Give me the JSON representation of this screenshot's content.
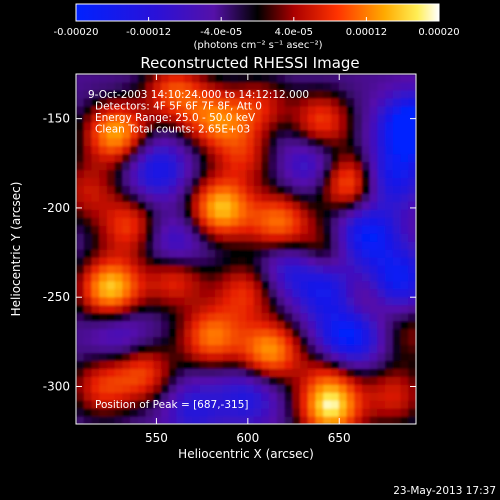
{
  "colorbar": {
    "tick_labels": [
      "-0.00020",
      "-0.00012",
      "-4.0e-05",
      "4.0e-05",
      "0.00012",
      "0.00020"
    ],
    "tick_values": [
      -0.0002,
      -0.00012,
      -4e-05,
      4e-05,
      0.00012,
      0.0002
    ],
    "range": [
      -0.0002,
      0.0002
    ],
    "unit_label": "(photons cm⁻² s⁻¹ asec⁻²)"
  },
  "chart_data": {
    "type": "heatmap",
    "title": "Reconstructed RHESSI Image",
    "xlabel": "Heliocentric X (arcsec)",
    "ylabel": "Heliocentric Y (arcsec)",
    "xlim": [
      506,
      692
    ],
    "ylim": [
      -321,
      -125
    ],
    "x_ticks": [
      550,
      600,
      650
    ],
    "y_ticks": [
      -150,
      -200,
      -250,
      -300
    ],
    "annotations": [
      "9-Oct-2003 14:10:24.000 to 14:12:12.000",
      "Detectors: 4F 5F 6F 7F 8F, Att 0",
      "Energy Range: 25.0 - 50.0 keV",
      "Clean    Total counts: 2.65E+03"
    ],
    "peak_label": "Position of Peak = [687,-315]",
    "peak": [
      687,
      -315
    ],
    "blobs": [
      {
        "x": 560,
        "y": -135,
        "v": 0.6
      },
      {
        "x": 528,
        "y": -158,
        "v": 0.85
      },
      {
        "x": 582,
        "y": -150,
        "v": 0.65
      },
      {
        "x": 608,
        "y": -146,
        "v": 0.7
      },
      {
        "x": 640,
        "y": -152,
        "v": 0.6
      },
      {
        "x": 655,
        "y": -185,
        "v": 0.75
      },
      {
        "x": 598,
        "y": -170,
        "v": 0.45
      },
      {
        "x": 512,
        "y": -190,
        "v": 0.4
      },
      {
        "x": 535,
        "y": -210,
        "v": 0.55
      },
      {
        "x": 585,
        "y": -200,
        "v": 0.9
      },
      {
        "x": 617,
        "y": -208,
        "v": 0.7
      },
      {
        "x": 640,
        "y": -225,
        "v": 0.45
      },
      {
        "x": 525,
        "y": -245,
        "v": 0.95
      },
      {
        "x": 560,
        "y": -238,
        "v": 0.6
      },
      {
        "x": 598,
        "y": -247,
        "v": 0.5
      },
      {
        "x": 660,
        "y": -250,
        "v": 0.35
      },
      {
        "x": 580,
        "y": -272,
        "v": 0.7
      },
      {
        "x": 612,
        "y": -280,
        "v": 0.8
      },
      {
        "x": 543,
        "y": -292,
        "v": 0.55
      },
      {
        "x": 520,
        "y": -300,
        "v": 0.5
      },
      {
        "x": 645,
        "y": -292,
        "v": 0.35
      },
      {
        "x": 645,
        "y": -312,
        "v": 0.95
      },
      {
        "x": 680,
        "y": -305,
        "v": 0.45
      },
      {
        "x": 690,
        "y": -270,
        "v": 0.3
      },
      {
        "x": 690,
        "y": -155,
        "v": -0.95
      },
      {
        "x": 678,
        "y": -182,
        "v": -0.55
      },
      {
        "x": 665,
        "y": -215,
        "v": -0.65
      },
      {
        "x": 645,
        "y": -245,
        "v": -0.6
      },
      {
        "x": 625,
        "y": -232,
        "v": -0.45
      },
      {
        "x": 655,
        "y": -272,
        "v": -0.75
      },
      {
        "x": 550,
        "y": -178,
        "v": -0.5
      },
      {
        "x": 560,
        "y": -222,
        "v": -0.45
      },
      {
        "x": 612,
        "y": -152,
        "v": -0.35
      },
      {
        "x": 600,
        "y": -305,
        "v": -0.4
      },
      {
        "x": 570,
        "y": -312,
        "v": -0.35
      },
      {
        "x": 530,
        "y": -270,
        "v": -0.3
      },
      {
        "x": 682,
        "y": -240,
        "v": -0.6
      },
      {
        "x": 636,
        "y": -175,
        "v": -0.4
      }
    ]
  },
  "footer": {
    "timestamp": "23-May-2013 17:37"
  }
}
